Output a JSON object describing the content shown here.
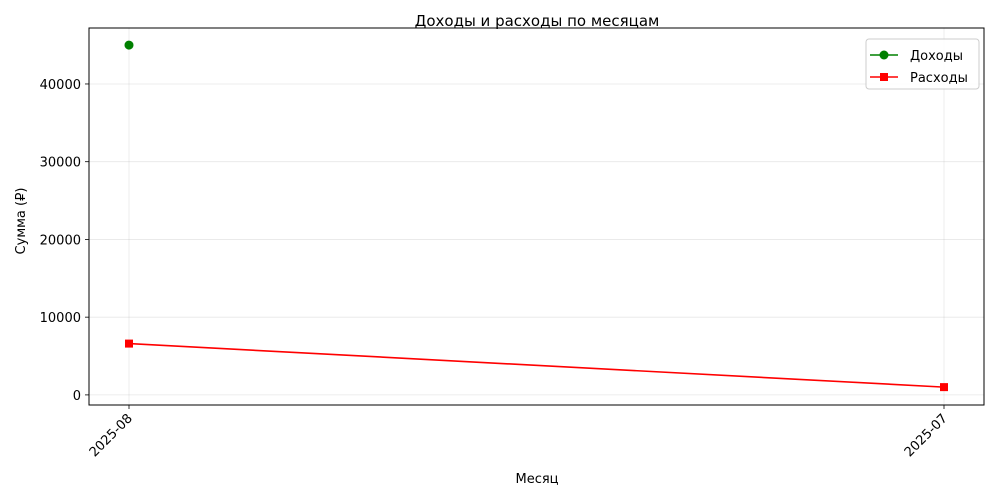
{
  "chart_data": {
    "type": "line",
    "title": "Доходы и расходы по месяцам",
    "xlabel": "Месяц",
    "ylabel": "Сумма (₽)",
    "categories": [
      "2025-08",
      "2025-07"
    ],
    "ylim": [
      -1300,
      47200
    ],
    "yticks": [
      0,
      10000,
      20000,
      30000,
      40000
    ],
    "grid": true,
    "legend_position": "top-right",
    "series": [
      {
        "name": "Доходы",
        "values": [
          45000,
          null
        ],
        "color": "#008000",
        "marker": "circle"
      },
      {
        "name": "Расходы",
        "values": [
          6600,
          1000
        ],
        "color": "#ff0000",
        "marker": "square"
      }
    ]
  }
}
